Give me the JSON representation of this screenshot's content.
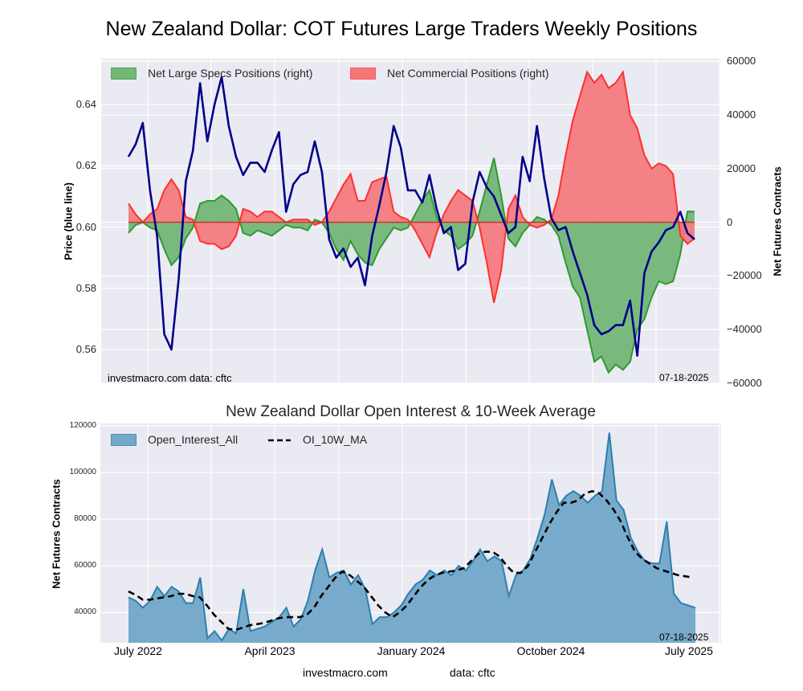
{
  "title": "New Zealand Dollar: COT Futures Large Traders Weekly Positions",
  "footer": {
    "site": "investmacro.com",
    "source": "data: cftc"
  },
  "colors": {
    "background": "#eaeaf2",
    "grid": "#ffffff",
    "price": "#00008b",
    "specs_fill": "#74b677",
    "specs_line": "#2e9a2e",
    "commercial_fill": "#f47679",
    "commercial_line": "#ff3030",
    "oi_fill": "#72a8c8",
    "oi_line": "#2c7fb0",
    "ma_line": "#000000"
  },
  "chart_data": [
    {
      "type": "area",
      "title": "New Zealand Dollar: COT Futures Large Traders Weekly Positions",
      "ylabel_left": "Price (blue line)",
      "ylabel_right": "Net Futures Contracts",
      "ylim_left": [
        0.549,
        0.655
      ],
      "ylim_right": [
        -60000,
        61000
      ],
      "yticks_left": [
        "0.56",
        "0.58",
        "0.60",
        "0.62",
        "0.64"
      ],
      "yticks_right": [
        "60000",
        "40000",
        "20000",
        "0",
        "−20000",
        "−40000",
        "−60000"
      ],
      "yticks_right_values": [
        60000,
        40000,
        20000,
        0,
        -20000,
        -40000,
        -60000
      ],
      "yticks_left_values": [
        0.56,
        0.58,
        0.6,
        0.62,
        0.64
      ],
      "legend": [
        "Net Large Specs Positions (right)",
        "Net Commercial Positions (right)"
      ],
      "legend_position": "top-left",
      "grid": true,
      "annotation_left": "investmacro.com   data: cftc",
      "annotation_right": "07-18-2025",
      "x_range": [
        "2022-07",
        "2025-07-18"
      ],
      "series": [
        {
          "name": "Price",
          "axis": "left",
          "values": [
            0.623,
            0.627,
            0.634,
            0.612,
            0.597,
            0.565,
            0.56,
            0.583,
            0.615,
            0.625,
            0.647,
            0.628,
            0.64,
            0.649,
            0.633,
            0.623,
            0.617,
            0.621,
            0.621,
            0.618,
            0.625,
            0.631,
            0.605,
            0.614,
            0.617,
            0.618,
            0.628,
            0.618,
            0.596,
            0.59,
            0.593,
            0.587,
            0.59,
            0.581,
            0.597,
            0.607,
            0.618,
            0.633,
            0.626,
            0.612,
            0.612,
            0.608,
            0.617,
            0.606,
            0.598,
            0.6,
            0.586,
            0.588,
            0.608,
            0.618,
            0.613,
            0.61,
            0.604,
            0.598,
            0.6,
            0.623,
            0.615,
            0.633,
            0.616,
            0.603,
            0.599,
            0.6,
            0.592,
            0.585,
            0.578,
            0.568,
            0.565,
            0.566,
            0.568,
            0.568,
            0.576,
            0.558,
            0.585,
            0.592,
            0.595,
            0.599,
            0.6,
            0.605,
            0.598,
            0.596
          ]
        },
        {
          "name": "Net Large Specs Positions (right)",
          "axis": "right",
          "values": [
            -4000,
            -1000,
            0,
            -2000,
            -3000,
            -10000,
            -16000,
            -13000,
            -6000,
            -2000,
            7000,
            8000,
            8000,
            10000,
            8000,
            5000,
            -4000,
            -5000,
            -3000,
            -4000,
            -5000,
            -3000,
            -1000,
            -2000,
            -2000,
            -3000,
            1000,
            0,
            -4000,
            -10000,
            -14000,
            -7000,
            -12000,
            -15000,
            -16000,
            -10000,
            -6000,
            -2000,
            -3000,
            -2000,
            3000,
            8000,
            12000,
            2000,
            -3000,
            -5000,
            -10000,
            -8000,
            -5000,
            4000,
            14000,
            24000,
            10000,
            -6000,
            -9000,
            -4000,
            -1000,
            2000,
            1000,
            -1000,
            -5000,
            -15000,
            -24000,
            -28000,
            -40000,
            -52000,
            -50000,
            -56000,
            -53000,
            -55000,
            -52000,
            -40000,
            -36000,
            -28000,
            -22000,
            -23000,
            -22000,
            -12000,
            4000,
            4000
          ]
        },
        {
          "name": "Net Commercial Positions (right)",
          "axis": "right",
          "values": [
            7000,
            3000,
            0,
            3000,
            5000,
            12000,
            16000,
            12000,
            2000,
            1000,
            -7000,
            -8000,
            -8000,
            -10000,
            -9000,
            -5000,
            5000,
            4000,
            2000,
            4000,
            4000,
            2000,
            0,
            1000,
            1000,
            1000,
            -1000,
            0,
            4000,
            9000,
            14000,
            18000,
            8000,
            8000,
            15000,
            16000,
            17000,
            4000,
            2000,
            1000,
            -3000,
            -8000,
            -13000,
            -4000,
            3000,
            8000,
            12000,
            10000,
            8000,
            -2000,
            -15000,
            -30000,
            -18000,
            5000,
            10000,
            2000,
            -1000,
            -2000,
            -1000,
            1000,
            10000,
            25000,
            38000,
            47000,
            56000,
            52000,
            55000,
            50000,
            52000,
            56000,
            40000,
            35000,
            25000,
            20000,
            22000,
            21000,
            18000,
            -5000,
            -8000,
            -6000
          ]
        }
      ]
    },
    {
      "type": "area",
      "title": "New Zealand Dollar Open Interest & 10-Week Average",
      "ylabel": "Net Futures Contracts",
      "ylim": [
        27000,
        121000
      ],
      "yticks": [
        "40000",
        "60000",
        "80000",
        "100000",
        "120000"
      ],
      "yticks_values": [
        40000,
        60000,
        80000,
        100000,
        120000
      ],
      "xticks": [
        "July 2022",
        "April 2023",
        "January 2024",
        "October 2024",
        "July 2025"
      ],
      "legend": [
        "Open_Interest_All",
        "OI_10W_MA"
      ],
      "legend_position": "top-left",
      "grid": true,
      "annotation_right": "07-18-2025",
      "series": [
        {
          "name": "Open_Interest_All",
          "values": [
            46500,
            45000,
            42000,
            45000,
            51000,
            47000,
            51000,
            49000,
            44000,
            44000,
            55000,
            29000,
            32000,
            28000,
            33000,
            31000,
            50000,
            32000,
            33000,
            34000,
            36000,
            38000,
            42000,
            34000,
            37000,
            45000,
            58000,
            67000,
            55000,
            57000,
            58000,
            52000,
            56000,
            50000,
            35000,
            38000,
            38000,
            40000,
            43000,
            48000,
            52000,
            54000,
            58000,
            56000,
            58000,
            56000,
            60000,
            58000,
            62000,
            67000,
            62000,
            64000,
            62000,
            47000,
            56000,
            58000,
            63000,
            72000,
            82000,
            97000,
            86000,
            90000,
            92000,
            90000,
            87000,
            90000,
            92000,
            117000,
            88000,
            84000,
            72000,
            66000,
            62000,
            61000,
            61000,
            79000,
            48000,
            44000,
            43000,
            42000
          ]
        },
        {
          "name": "OI_10W_MA",
          "values": [
            49000,
            47500,
            45500,
            45500,
            46000,
            46500,
            47000,
            48000,
            48000,
            47000,
            46500,
            43000,
            39000,
            36000,
            33000,
            32500,
            33500,
            34500,
            35000,
            35500,
            36500,
            37500,
            38000,
            38000,
            38000,
            39000,
            42000,
            47000,
            51000,
            55000,
            57500,
            56000,
            53500,
            51000,
            47000,
            43000,
            40000,
            38000,
            40000,
            43000,
            47000,
            51000,
            54000,
            56000,
            57000,
            57500,
            58000,
            59000,
            62000,
            65000,
            66000,
            66000,
            64000,
            60000,
            57000,
            57000,
            60000,
            66000,
            72000,
            78000,
            83000,
            87000,
            87000,
            88000,
            91000,
            92000,
            91000,
            88000,
            84000,
            79000,
            72000,
            66000,
            63000,
            61000,
            59000,
            58000,
            57000,
            56000,
            55500,
            55000
          ]
        }
      ]
    }
  ]
}
